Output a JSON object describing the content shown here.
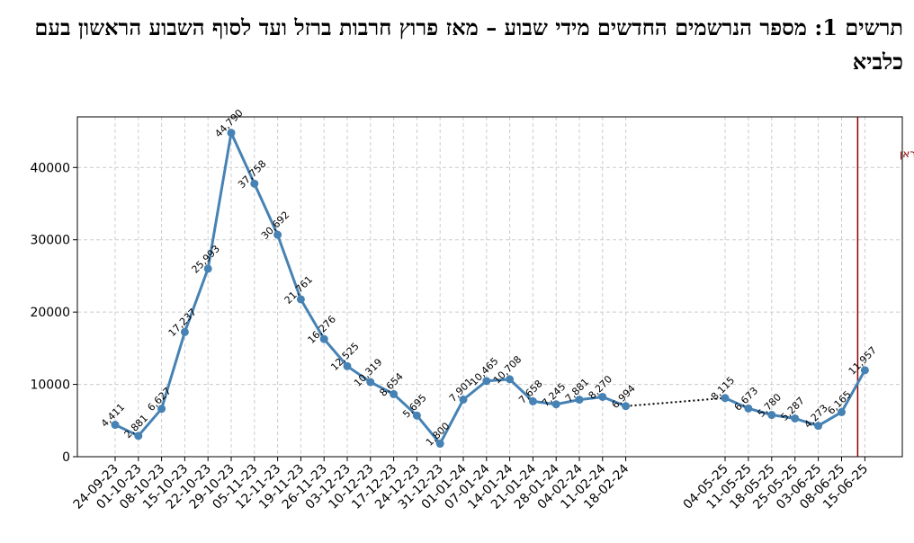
{
  "chart_data": {
    "type": "line",
    "title": "תרשים 1: מספר הנרשמים החדשים מידי שבוע – מאז פרוץ חרבות ברזל ועד לסוף השבוע הראשון בעם כלביא",
    "xlabel": "",
    "ylabel": "",
    "ylim": [
      0,
      47000
    ],
    "yticks": [
      0,
      10000,
      20000,
      30000,
      40000
    ],
    "grid": true,
    "colors": {
      "line": "#4682b4",
      "gap_line": "#000000",
      "annotation": "#8b0000"
    },
    "series": [
      {
        "segment": "first",
        "points": [
          {
            "x": "24-09-23",
            "y": 4411,
            "label": "4,411"
          },
          {
            "x": "01-10-23",
            "y": 2881,
            "label": "2,881"
          },
          {
            "x": "08-10-23",
            "y": 6627,
            "label": "6,627"
          },
          {
            "x": "15-10-23",
            "y": 17237,
            "label": "17,237"
          },
          {
            "x": "22-10-23",
            "y": 25993,
            "label": "25,993"
          },
          {
            "x": "29-10-23",
            "y": 44790,
            "label": "44,790"
          },
          {
            "x": "05-11-23",
            "y": 37758,
            "label": "37,758"
          },
          {
            "x": "12-11-23",
            "y": 30692,
            "label": "30,692"
          },
          {
            "x": "19-11-23",
            "y": 21761,
            "label": "21,761"
          },
          {
            "x": "26-11-23",
            "y": 16276,
            "label": "16,276"
          },
          {
            "x": "03-12-23",
            "y": 12525,
            "label": "12,525"
          },
          {
            "x": "10-12-23",
            "y": 10319,
            "label": "10,319"
          },
          {
            "x": "17-12-23",
            "y": 8654,
            "label": "8,654"
          },
          {
            "x": "24-12-23",
            "y": 5695,
            "label": "5,695"
          },
          {
            "x": "31-12-23",
            "y": 1800,
            "label": "1,800"
          },
          {
            "x": "01-01-24",
            "y": 7901,
            "label": "7,901"
          },
          {
            "x": "07-01-24",
            "y": 10465,
            "label": "10,465"
          },
          {
            "x": "14-01-24",
            "y": 10708,
            "label": "10,708"
          },
          {
            "x": "21-01-24",
            "y": 7658,
            "label": "7,658"
          },
          {
            "x": "28-01-24",
            "y": 7245,
            "label": "7,245"
          },
          {
            "x": "04-02-24",
            "y": 7881,
            "label": "7,881"
          },
          {
            "x": "11-02-24",
            "y": 8270,
            "label": "8,270"
          },
          {
            "x": "18-02-24",
            "y": 6994,
            "label": "6,994"
          }
        ]
      },
      {
        "segment": "second",
        "points": [
          {
            "x": "04-05-25",
            "y": 8115,
            "label": "8,115"
          },
          {
            "x": "11-05-25",
            "y": 6673,
            "label": "6,673"
          },
          {
            "x": "18-05-25",
            "y": 5780,
            "label": "5,780"
          },
          {
            "x": "25-05-25",
            "y": 5287,
            "label": "5,287"
          },
          {
            "x": "03-06-25",
            "y": 4273,
            "label": "4,273"
          },
          {
            "x": "08-06-25",
            "y": 6165,
            "label": "6,165"
          },
          {
            "x": "15-06-25",
            "y": 11957,
            "label": "11,957"
          }
        ]
      }
    ],
    "annotation": {
      "text": "פעולת מנע באיראן"
    }
  }
}
